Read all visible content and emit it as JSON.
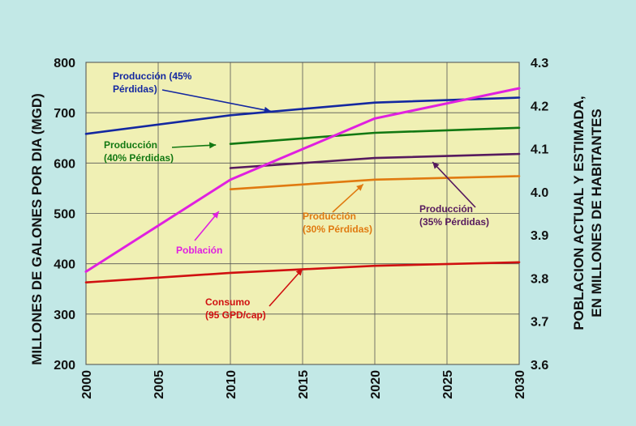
{
  "chart_data": {
    "type": "line",
    "xlim": [
      2000,
      2030
    ],
    "ylim_left": [
      200,
      800
    ],
    "ylim_right": [
      3.6,
      4.3
    ],
    "x_ticks": [
      "2000",
      "2005",
      "2010",
      "2015",
      "2020",
      "2025",
      "2030"
    ],
    "y_left_ticks": [
      "200",
      "300",
      "400",
      "500",
      "600",
      "700",
      "800"
    ],
    "y_right_ticks": [
      "3.6",
      "3.7",
      "3.8",
      "3.9",
      "4.0",
      "4.1",
      "4.2",
      "4.3"
    ],
    "ylabel_left": "MILLONES DE GALONES POR DIA (MGD)",
    "ylabel_right_line1": "POBLACION ACTUAL Y ESTIMADA,",
    "ylabel_right_line2": "EN MILLONES DE HABITANTES",
    "grid": true,
    "colors": {
      "plot_bg": "#f0f0b4",
      "page_bg": "#c2e8e6",
      "blue": "#1428a0",
      "green": "#127812",
      "purple": "#561a5e",
      "orange": "#e07a10",
      "red": "#d01010",
      "magenta": "#e020e0"
    },
    "series": [
      {
        "name": "Producción (45% Pérdidas)",
        "axis": "left",
        "color": "blue",
        "x": [
          2000,
          2010,
          2020,
          2030
        ],
        "values": [
          658,
          695,
          720,
          730
        ]
      },
      {
        "name": "Producción (40% Pérdidas)",
        "axis": "left",
        "color": "green",
        "x": [
          2010,
          2020,
          2030
        ],
        "values": [
          638,
          660,
          670
        ]
      },
      {
        "name": "Producción (35% Pérdidas)",
        "axis": "left",
        "color": "purple",
        "x": [
          2010,
          2020,
          2030
        ],
        "values": [
          590,
          610,
          618
        ]
      },
      {
        "name": "Producción (30% Pérdidas)",
        "axis": "left",
        "color": "orange",
        "x": [
          2010,
          2020,
          2030
        ],
        "values": [
          548,
          567,
          574
        ]
      },
      {
        "name": "Consumo (95 GPD/cap)",
        "axis": "left",
        "color": "red",
        "x": [
          2000,
          2010,
          2020,
          2030
        ],
        "values": [
          363,
          382,
          396,
          403
        ]
      },
      {
        "name": "Población",
        "axis": "right",
        "color": "magenta",
        "x": [
          2000,
          2010,
          2020,
          2030
        ],
        "values": [
          3.815,
          4.028,
          4.17,
          4.24
        ]
      }
    ],
    "annotations": [
      {
        "id": "prod45",
        "lines": [
          "Producción (45%",
          "Pérdidas)"
        ],
        "color": "blue",
        "arrow_to": [
          2012.8,
          703
        ]
      },
      {
        "id": "prod40",
        "lines": [
          "Producción",
          "(40% Pérdidas)"
        ],
        "color": "green",
        "arrow_to": [
          2009,
          636
        ]
      },
      {
        "id": "prod35",
        "lines": [
          "Producción",
          "(35% Pérdidas)"
        ],
        "color": "purple",
        "arrow_to": [
          2024,
          602
        ]
      },
      {
        "id": "prod30",
        "lines": [
          "Producción",
          "(30% Pérdidas)"
        ],
        "color": "orange",
        "arrow_to": [
          2019.2,
          558
        ]
      },
      {
        "id": "consumo",
        "lines": [
          "Consumo",
          "(95 GPD/cap)"
        ],
        "color": "red",
        "arrow_to": [
          2015,
          390
        ]
      },
      {
        "id": "poblacion",
        "lines": [
          "Población"
        ],
        "color": "magenta",
        "arrow_to": [
          2009.2,
          504
        ]
      }
    ]
  }
}
